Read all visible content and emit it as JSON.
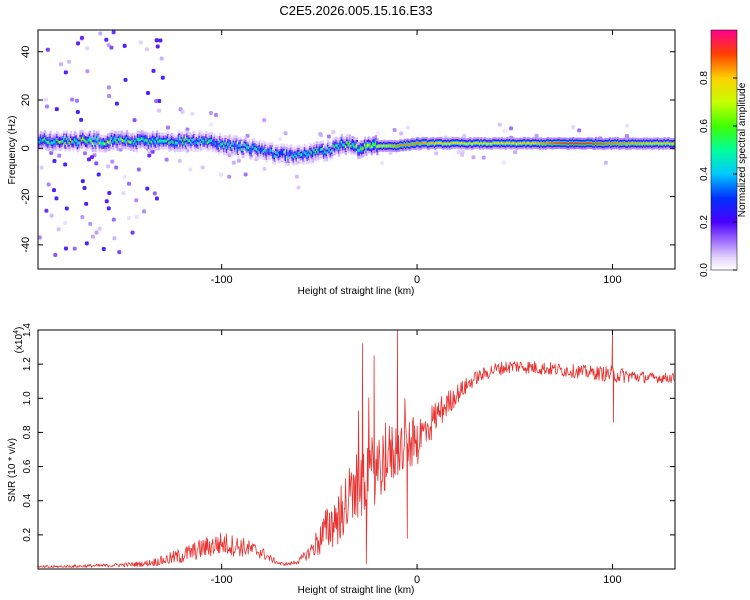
{
  "title": "C2E5.2026.005.15.16.E33",
  "chart_data": [
    {
      "type": "heatmap",
      "name": "spectrogram",
      "xlabel": "Height of straight line (km)",
      "ylabel": "Frequency (Hz)",
      "xlim": [
        -194,
        132
      ],
      "ylim": [
        -50,
        49
      ],
      "xticks": [
        -100,
        0,
        100
      ],
      "yticks": [
        -40,
        -20,
        0,
        20,
        40
      ],
      "colorbar": {
        "label": "Normalized spectral amplitude",
        "range": [
          0,
          1
        ],
        "ticks": [
          0.0,
          0.2,
          0.4,
          0.6,
          0.8
        ],
        "tick_labels": [
          "0.0",
          "0.2",
          "0.4",
          "0.6",
          "0.8"
        ]
      },
      "ridge": {
        "x": [
          -190,
          -170,
          -150,
          -130,
          -110,
          -95,
          -85,
          -75,
          -65,
          -55,
          -45,
          -38,
          -30,
          -20,
          -10,
          0,
          20,
          40,
          60,
          80,
          100,
          120,
          132
        ],
        "center_hz": [
          3,
          3,
          3,
          3,
          3,
          1,
          0,
          -2,
          -3,
          -2,
          -1,
          2,
          0,
          1,
          1,
          2,
          2,
          2,
          2,
          2,
          2,
          2,
          2
        ],
        "amplitude": [
          0.5,
          0.55,
          0.55,
          0.5,
          0.45,
          0.45,
          0.45,
          0.4,
          0.4,
          0.45,
          0.45,
          0.5,
          0.6,
          0.75,
          0.85,
          0.85,
          0.75,
          0.75,
          0.8,
          0.95,
          0.85,
          0.8,
          0.8
        ]
      }
    },
    {
      "type": "line",
      "name": "snr",
      "xlabel": "Height of straight line (km)",
      "ylabel": "SNR (10 * v/v)",
      "scale_label": "(x10",
      "scale_exponent": "4",
      "xlim": [
        -194,
        132
      ],
      "ylim": [
        0,
        1.4
      ],
      "xticks": [
        -100,
        0,
        100
      ],
      "yticks": [
        0.2,
        0.4,
        0.6,
        0.8,
        1.0,
        1.2,
        1.4
      ],
      "ytick_labels": [
        "0.2",
        "0.4",
        "0.6",
        "0.8",
        "1.0",
        "1.2",
        "1.4"
      ],
      "color": "#e8312f",
      "envelope": {
        "x": [
          -194,
          -160,
          -140,
          -130,
          -120,
          -110,
          -100,
          -90,
          -80,
          -75,
          -70,
          -65,
          -60,
          -55,
          -50,
          -45,
          -40,
          -35,
          -30,
          -25,
          -20,
          -15,
          -10,
          -5,
          0,
          5,
          10,
          20,
          30,
          40,
          50,
          60,
          70,
          80,
          90,
          100,
          110,
          120,
          132
        ],
        "mean": [
          0.01,
          0.02,
          0.03,
          0.05,
          0.08,
          0.12,
          0.15,
          0.13,
          0.1,
          0.06,
          0.03,
          0.03,
          0.05,
          0.1,
          0.17,
          0.25,
          0.32,
          0.4,
          0.48,
          0.55,
          0.6,
          0.65,
          0.7,
          0.72,
          0.75,
          0.82,
          0.9,
          1.02,
          1.12,
          1.17,
          1.19,
          1.18,
          1.17,
          1.16,
          1.15,
          1.14,
          1.13,
          1.12,
          1.12
        ],
        "noise": [
          0.01,
          0.01,
          0.015,
          0.03,
          0.05,
          0.06,
          0.07,
          0.06,
          0.04,
          0.02,
          0.01,
          0.01,
          0.02,
          0.04,
          0.1,
          0.15,
          0.18,
          0.2,
          0.22,
          0.22,
          0.2,
          0.2,
          0.17,
          0.15,
          0.15,
          0.12,
          0.1,
          0.06,
          0.04,
          0.04,
          0.04,
          0.04,
          0.04,
          0.04,
          0.04,
          0.05,
          0.04,
          0.03,
          0.03
        ]
      },
      "spikes": [
        {
          "x": -28,
          "y": 1.32
        },
        {
          "x": -26,
          "y": 0.03
        },
        {
          "x": -22,
          "y": 1.25
        },
        {
          "x": -10,
          "y": 1.4
        },
        {
          "x": -5,
          "y": 0.18
        },
        {
          "x": 100,
          "y": 1.4
        },
        {
          "x": 100.5,
          "y": 0.86
        }
      ]
    }
  ]
}
